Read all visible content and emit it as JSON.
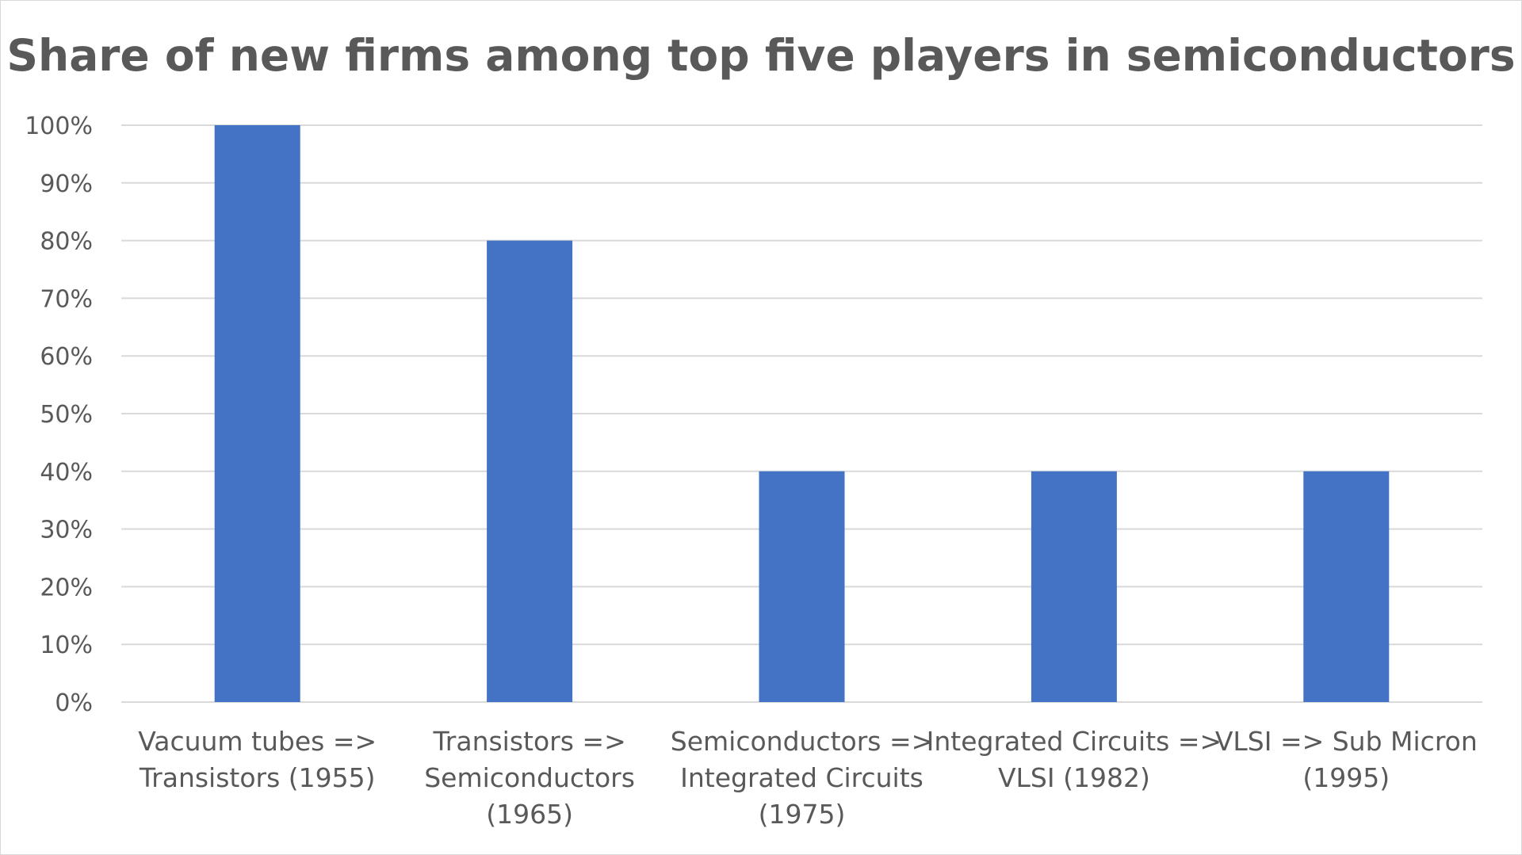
{
  "chart_data": {
    "type": "bar",
    "title": "Share of new firms among top five players in semiconductors",
    "categories": [
      [
        "Vacuum tubes =>",
        "Transistors (1955)"
      ],
      [
        "Transistors =>",
        "Semiconductors",
        "(1965)"
      ],
      [
        "Semiconductors =>",
        "Integrated Circuits",
        "(1975)"
      ],
      [
        "Integrated Circuits =>",
        "VLSI (1982)"
      ],
      [
        "VLSI => Sub Micron",
        "(1995)"
      ]
    ],
    "values": [
      100,
      80,
      40,
      40,
      40
    ],
    "ylim": [
      0,
      100
    ],
    "yticks": [
      "0%",
      "10%",
      "20%",
      "30%",
      "40%",
      "50%",
      "60%",
      "70%",
      "80%",
      "90%",
      "100%"
    ],
    "grid": true,
    "bar_color": "#4472c4",
    "grid_color": "#d9d9d9",
    "text_color": "#595959"
  }
}
